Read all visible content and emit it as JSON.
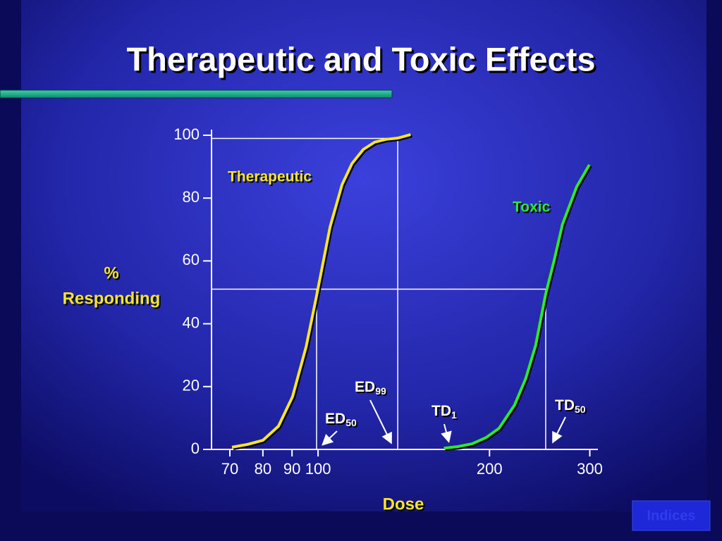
{
  "chart_data": {
    "type": "line",
    "title": "Therapeutic and Toxic Effects",
    "x_label": "Dose",
    "y_label": [
      "%",
      "Responding"
    ],
    "log_x": true,
    "xlim": [
      65,
      310
    ],
    "xticks": [
      70,
      80,
      90,
      100,
      200,
      300
    ],
    "ylim": [
      0,
      100
    ],
    "yticks": [
      0,
      20,
      40,
      60,
      80,
      100
    ],
    "series": [
      {
        "name": "Therapeutic",
        "color": "#f5e52a",
        "x": [
          70.6,
          75.2,
          80.0,
          85.2,
          90.2,
          95.3,
          99.4,
          105,
          110.2,
          114.7,
          120.1,
          125.7,
          131.6,
          138.1,
          145.4
        ],
        "values": [
          0.7,
          1.6,
          2.9,
          7.4,
          16.8,
          32.7,
          48.9,
          70.9,
          84.3,
          91.0,
          95.5,
          97.8,
          98.7,
          99.1,
          100.2
        ]
      },
      {
        "name": "Toxic",
        "color": "#2ee82e",
        "x": [
          166.3,
          176.1,
          186.5,
          197.4,
          207.8,
          221.3,
          231.6,
          241.1,
          250.9,
          259.7,
          268.7,
          284.5,
          299.5
        ],
        "values": [
          0.4,
          0.9,
          1.8,
          3.8,
          6.7,
          14.1,
          22.6,
          33.2,
          49.3,
          60.1,
          71.7,
          83.6,
          90.6
        ]
      }
    ],
    "guides": [
      {
        "x": [
          65,
          251
        ],
        "y": [
          51,
          51
        ]
      },
      {
        "x": [
          65,
          138
        ],
        "y": [
          99,
          99
        ]
      },
      {
        "x": [
          99.4,
          99.4
        ],
        "y": [
          0,
          51
        ]
      },
      {
        "x": [
          138,
          138
        ],
        "y": [
          0,
          99
        ]
      },
      {
        "x": [
          251,
          251
        ],
        "y": [
          0,
          51
        ]
      }
    ],
    "annotations": [
      {
        "text": "ED",
        "sub": "99"
      },
      {
        "text": "ED",
        "sub": "50"
      },
      {
        "text": "TD",
        "sub": "1"
      },
      {
        "text": "TD",
        "sub": "50"
      }
    ],
    "button": "Indices"
  }
}
